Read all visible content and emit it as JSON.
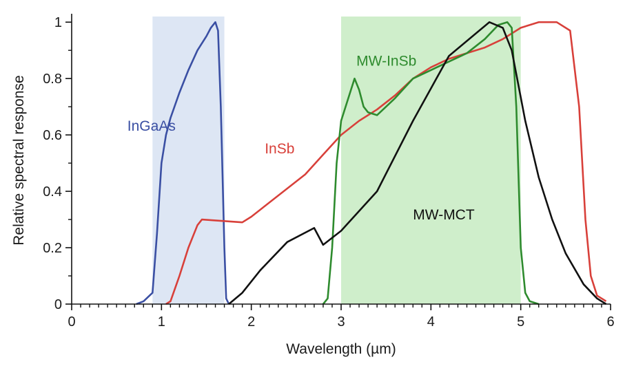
{
  "chart_data": {
    "type": "line",
    "title": "",
    "xlabel": "Wavelength (µm)",
    "ylabel": "Relative spectral response",
    "xlim": [
      0,
      6
    ],
    "ylim": [
      0,
      1.02
    ],
    "x_ticks": [
      0,
      1,
      2,
      3,
      4,
      5,
      6
    ],
    "x_tick_labels": [
      "0",
      "1",
      "2",
      "3",
      "4",
      "5",
      "6"
    ],
    "y_ticks": [
      0,
      0.2,
      0.4,
      0.6,
      0.8,
      1
    ],
    "y_tick_labels": [
      "0",
      "0.2",
      "0.4",
      "0.6",
      "0.8",
      "1"
    ],
    "grid": false,
    "bands": [
      {
        "x0": 0.9,
        "x1": 1.7,
        "color": "#dde6f4"
      },
      {
        "x0": 3.0,
        "x1": 5.0,
        "color": "#cfeecb"
      }
    ],
    "series": [
      {
        "name": "InGaAs",
        "color": "#3a4fa3",
        "label_pos": [
          0.62,
          0.615
        ],
        "points": [
          [
            0.72,
            0
          ],
          [
            0.8,
            0.01
          ],
          [
            0.9,
            0.04
          ],
          [
            0.95,
            0.25
          ],
          [
            1.0,
            0.5
          ],
          [
            1.05,
            0.6
          ],
          [
            1.1,
            0.66
          ],
          [
            1.2,
            0.75
          ],
          [
            1.3,
            0.83
          ],
          [
            1.4,
            0.9
          ],
          [
            1.5,
            0.95
          ],
          [
            1.55,
            0.98
          ],
          [
            1.6,
            1.0
          ],
          [
            1.63,
            0.97
          ],
          [
            1.66,
            0.7
          ],
          [
            1.7,
            0.2
          ],
          [
            1.72,
            0.02
          ],
          [
            1.75,
            0
          ]
        ]
      },
      {
        "name": "InSb",
        "color": "#d8403a",
        "label_pos": [
          2.15,
          0.535
        ],
        "points": [
          [
            1.05,
            0
          ],
          [
            1.1,
            0.01
          ],
          [
            1.2,
            0.1
          ],
          [
            1.3,
            0.2
          ],
          [
            1.4,
            0.28
          ],
          [
            1.45,
            0.3
          ],
          [
            1.9,
            0.29
          ],
          [
            2.0,
            0.31
          ],
          [
            2.2,
            0.36
          ],
          [
            2.4,
            0.41
          ],
          [
            2.6,
            0.46
          ],
          [
            2.8,
            0.53
          ],
          [
            3.0,
            0.6
          ],
          [
            3.2,
            0.65
          ],
          [
            3.4,
            0.69
          ],
          [
            3.6,
            0.74
          ],
          [
            3.8,
            0.8
          ],
          [
            4.0,
            0.84
          ],
          [
            4.2,
            0.87
          ],
          [
            4.4,
            0.89
          ],
          [
            4.6,
            0.91
          ],
          [
            4.8,
            0.94
          ],
          [
            5.0,
            0.98
          ],
          [
            5.2,
            1.0
          ],
          [
            5.4,
            1.0
          ],
          [
            5.55,
            0.97
          ],
          [
            5.65,
            0.7
          ],
          [
            5.72,
            0.3
          ],
          [
            5.78,
            0.1
          ],
          [
            5.85,
            0.03
          ],
          [
            5.95,
            0.01
          ]
        ]
      },
      {
        "name": "MW-InSb",
        "color": "#2e8b2e",
        "label_pos": [
          3.17,
          0.845
        ],
        "points": [
          [
            2.8,
            0
          ],
          [
            2.85,
            0.02
          ],
          [
            2.9,
            0.2
          ],
          [
            2.95,
            0.5
          ],
          [
            3.0,
            0.65
          ],
          [
            3.05,
            0.7
          ],
          [
            3.1,
            0.75
          ],
          [
            3.15,
            0.8
          ],
          [
            3.2,
            0.76
          ],
          [
            3.25,
            0.7
          ],
          [
            3.3,
            0.68
          ],
          [
            3.4,
            0.67
          ],
          [
            3.6,
            0.73
          ],
          [
            3.8,
            0.8
          ],
          [
            4.0,
            0.83
          ],
          [
            4.2,
            0.86
          ],
          [
            4.4,
            0.89
          ],
          [
            4.6,
            0.94
          ],
          [
            4.75,
            0.99
          ],
          [
            4.85,
            1.0
          ],
          [
            4.9,
            0.98
          ],
          [
            4.95,
            0.7
          ],
          [
            5.0,
            0.2
          ],
          [
            5.05,
            0.04
          ],
          [
            5.1,
            0.01
          ],
          [
            5.2,
            0
          ]
        ]
      },
      {
        "name": "MW-MCT",
        "color": "#111111",
        "label_pos": [
          3.8,
          0.3
        ],
        "points": [
          [
            1.75,
            0
          ],
          [
            1.9,
            0.04
          ],
          [
            2.1,
            0.12
          ],
          [
            2.4,
            0.22
          ],
          [
            2.7,
            0.27
          ],
          [
            2.8,
            0.21
          ],
          [
            3.0,
            0.26
          ],
          [
            3.4,
            0.4
          ],
          [
            3.8,
            0.65
          ],
          [
            4.2,
            0.88
          ],
          [
            4.5,
            0.96
          ],
          [
            4.65,
            1.0
          ],
          [
            4.8,
            0.98
          ],
          [
            4.9,
            0.9
          ],
          [
            5.05,
            0.65
          ],
          [
            5.2,
            0.45
          ],
          [
            5.35,
            0.3
          ],
          [
            5.5,
            0.18
          ],
          [
            5.7,
            0.07
          ],
          [
            5.85,
            0.02
          ],
          [
            5.95,
            0
          ]
        ]
      }
    ]
  }
}
